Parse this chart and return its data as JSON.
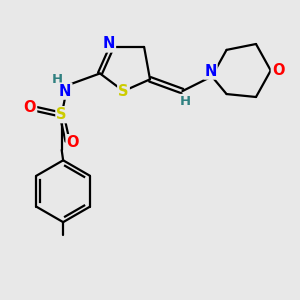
{
  "background_color": "#e8e8e8",
  "bond_color": "#000000",
  "atom_colors": {
    "N": "#0000FF",
    "S": "#CCCC00",
    "O": "#FF0000",
    "H": "#2F8080",
    "C": "#000000"
  },
  "font_size": 10.5
}
